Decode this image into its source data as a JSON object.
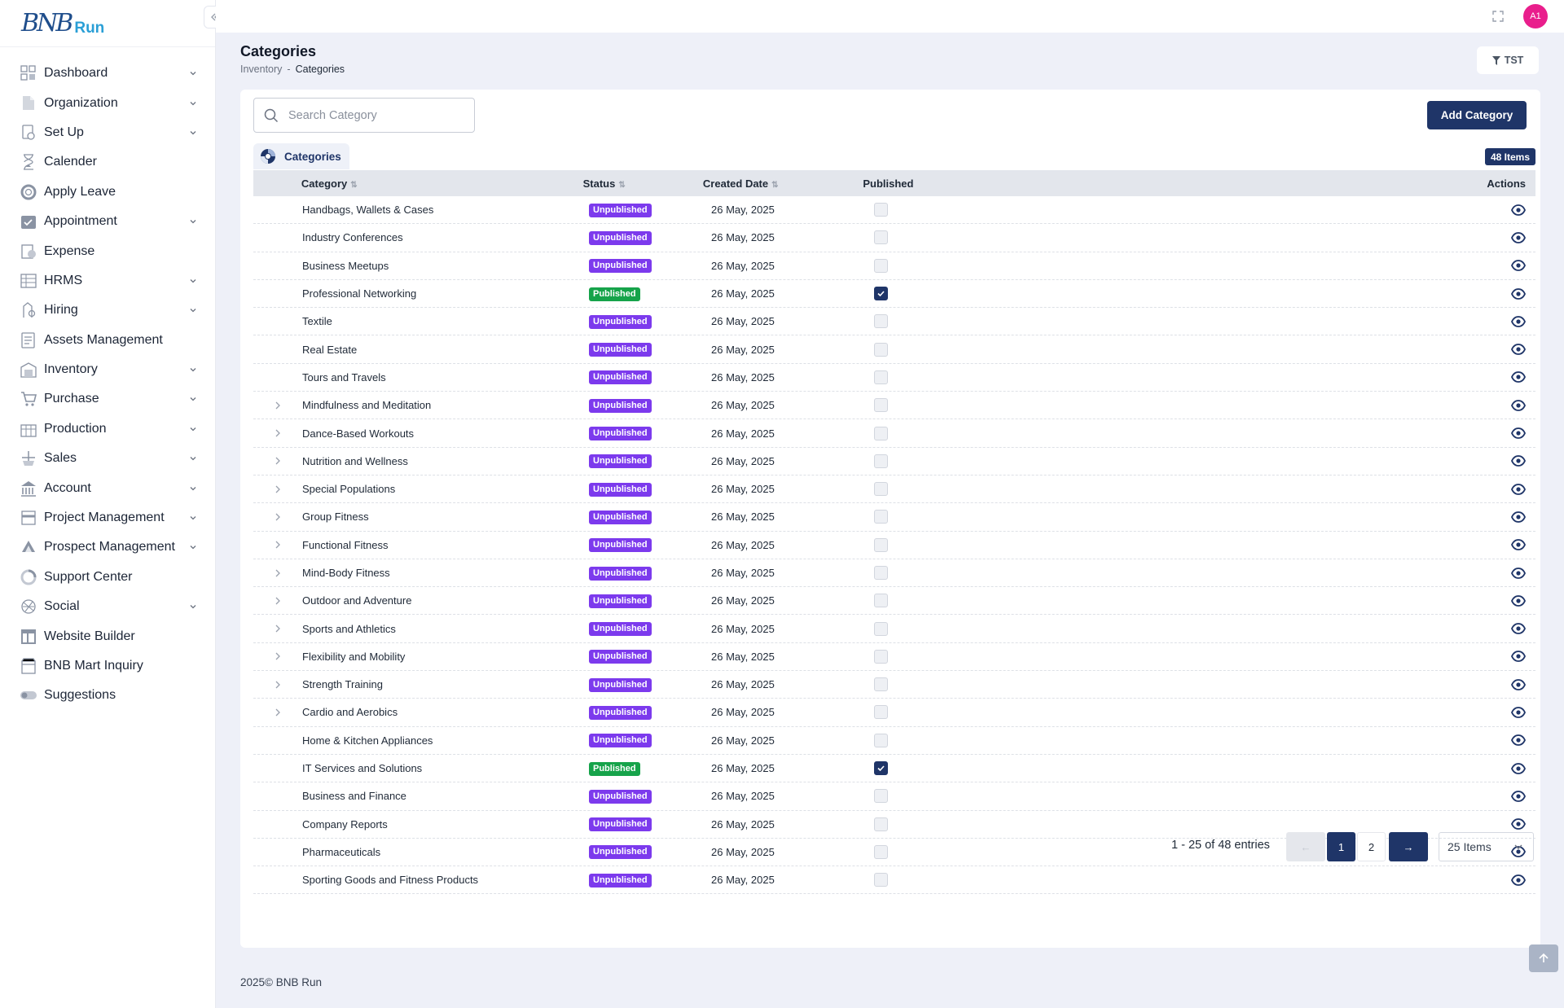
{
  "brand": {
    "mark": "BNB",
    "text": "Run"
  },
  "sidebar": {
    "items": [
      {
        "label": "Dashboard",
        "icon": "dashboard-icon",
        "chevron": true
      },
      {
        "label": "Organization",
        "icon": "document-icon",
        "chevron": true
      },
      {
        "label": "Set Up",
        "icon": "setup-icon",
        "chevron": true
      },
      {
        "label": "Calender",
        "icon": "hourglass-icon",
        "chevron": false
      },
      {
        "label": "Apply Leave",
        "icon": "lifebuoy-icon",
        "chevron": false
      },
      {
        "label": "Appointment",
        "icon": "calendar-check-icon",
        "chevron": true
      },
      {
        "label": "Expense",
        "icon": "expense-icon",
        "chevron": false
      },
      {
        "label": "HRMS",
        "icon": "hrms-icon",
        "chevron": true
      },
      {
        "label": "Hiring",
        "icon": "hiring-icon",
        "chevron": true
      },
      {
        "label": "Assets Management",
        "icon": "assets-icon",
        "chevron": false
      },
      {
        "label": "Inventory",
        "icon": "inventory-icon",
        "chevron": true
      },
      {
        "label": "Purchase",
        "icon": "cart-icon",
        "chevron": true
      },
      {
        "label": "Production",
        "icon": "production-icon",
        "chevron": true
      },
      {
        "label": "Sales",
        "icon": "sales-icon",
        "chevron": true
      },
      {
        "label": "Account",
        "icon": "bank-icon",
        "chevron": true
      },
      {
        "label": "Project Management",
        "icon": "project-icon",
        "chevron": true
      },
      {
        "label": "Prospect Management",
        "icon": "prospect-icon",
        "chevron": true
      },
      {
        "label": "Support Center",
        "icon": "support-icon",
        "chevron": false
      },
      {
        "label": "Social",
        "icon": "social-icon",
        "chevron": true
      },
      {
        "label": "Website Builder",
        "icon": "layout-icon",
        "chevron": false
      },
      {
        "label": "BNB Mart Inquiry",
        "icon": "store-icon",
        "chevron": false
      },
      {
        "label": "Suggestions",
        "icon": "toggle-icon",
        "chevron": false
      }
    ]
  },
  "topbar": {
    "avatar_initials": "A1"
  },
  "page": {
    "title": "Categories",
    "breadcrumb": [
      "Inventory",
      "Categories"
    ],
    "breadcrumb_sep": "-",
    "filter_label": "TST"
  },
  "toolbar": {
    "search_placeholder": "Search Category",
    "add_label": "Add Category",
    "tab_label": "Categories",
    "count": "48 Items"
  },
  "table": {
    "headers": {
      "category": "Category",
      "status": "Status",
      "created": "Created Date",
      "published": "Published",
      "actions": "Actions"
    },
    "rows": [
      {
        "expand": false,
        "category": "Handbags, Wallets & Cases",
        "status": "Unpublished",
        "date": "26 May, 2025",
        "published": false
      },
      {
        "expand": false,
        "category": "Industry Conferences",
        "status": "Unpublished",
        "date": "26 May, 2025",
        "published": false
      },
      {
        "expand": false,
        "category": "Business Meetups",
        "status": "Unpublished",
        "date": "26 May, 2025",
        "published": false
      },
      {
        "expand": false,
        "category": "Professional Networking",
        "status": "Published",
        "date": "26 May, 2025",
        "published": true
      },
      {
        "expand": false,
        "category": "Textile",
        "status": "Unpublished",
        "date": "26 May, 2025",
        "published": false
      },
      {
        "expand": false,
        "category": "Real Estate",
        "status": "Unpublished",
        "date": "26 May, 2025",
        "published": false
      },
      {
        "expand": false,
        "category": "Tours and Travels",
        "status": "Unpublished",
        "date": "26 May, 2025",
        "published": false
      },
      {
        "expand": true,
        "category": "Mindfulness and Meditation",
        "status": "Unpublished",
        "date": "26 May, 2025",
        "published": false
      },
      {
        "expand": true,
        "category": "Dance-Based Workouts",
        "status": "Unpublished",
        "date": "26 May, 2025",
        "published": false
      },
      {
        "expand": true,
        "category": "Nutrition and Wellness",
        "status": "Unpublished",
        "date": "26 May, 2025",
        "published": false
      },
      {
        "expand": true,
        "category": "Special Populations",
        "status": "Unpublished",
        "date": "26 May, 2025",
        "published": false
      },
      {
        "expand": true,
        "category": "Group Fitness",
        "status": "Unpublished",
        "date": "26 May, 2025",
        "published": false
      },
      {
        "expand": true,
        "category": "Functional Fitness",
        "status": "Unpublished",
        "date": "26 May, 2025",
        "published": false
      },
      {
        "expand": true,
        "category": "Mind-Body Fitness",
        "status": "Unpublished",
        "date": "26 May, 2025",
        "published": false
      },
      {
        "expand": true,
        "category": "Outdoor and Adventure",
        "status": "Unpublished",
        "date": "26 May, 2025",
        "published": false
      },
      {
        "expand": true,
        "category": "Sports and Athletics",
        "status": "Unpublished",
        "date": "26 May, 2025",
        "published": false
      },
      {
        "expand": true,
        "category": "Flexibility and Mobility",
        "status": "Unpublished",
        "date": "26 May, 2025",
        "published": false
      },
      {
        "expand": true,
        "category": "Strength Training",
        "status": "Unpublished",
        "date": "26 May, 2025",
        "published": false
      },
      {
        "expand": true,
        "category": "Cardio and Aerobics",
        "status": "Unpublished",
        "date": "26 May, 2025",
        "published": false
      },
      {
        "expand": false,
        "category": "Home & Kitchen Appliances",
        "status": "Unpublished",
        "date": "26 May, 2025",
        "published": false
      },
      {
        "expand": false,
        "category": "IT Services and Solutions",
        "status": "Published",
        "date": "26 May, 2025",
        "published": true
      },
      {
        "expand": false,
        "category": "Business and Finance",
        "status": "Unpublished",
        "date": "26 May, 2025",
        "published": false
      },
      {
        "expand": false,
        "category": "Company Reports",
        "status": "Unpublished",
        "date": "26 May, 2025",
        "published": false
      },
      {
        "expand": false,
        "category": "Pharmaceuticals",
        "status": "Unpublished",
        "date": "26 May, 2025",
        "published": false
      },
      {
        "expand": false,
        "category": "Sporting Goods and Fitness Products",
        "status": "Unpublished",
        "date": "26 May, 2025",
        "published": false
      }
    ]
  },
  "pagination": {
    "entries": "1 - 25 of 48 entries",
    "pages": [
      "1",
      "2"
    ],
    "current_page": "1",
    "page_size": "25 Items"
  },
  "footer": {
    "text": "2025© BNB Run"
  },
  "colors": {
    "primary": "#1f3568",
    "unpublished": "#7c3aed",
    "published": "#16a34a",
    "avatar": "#e91e8c"
  }
}
